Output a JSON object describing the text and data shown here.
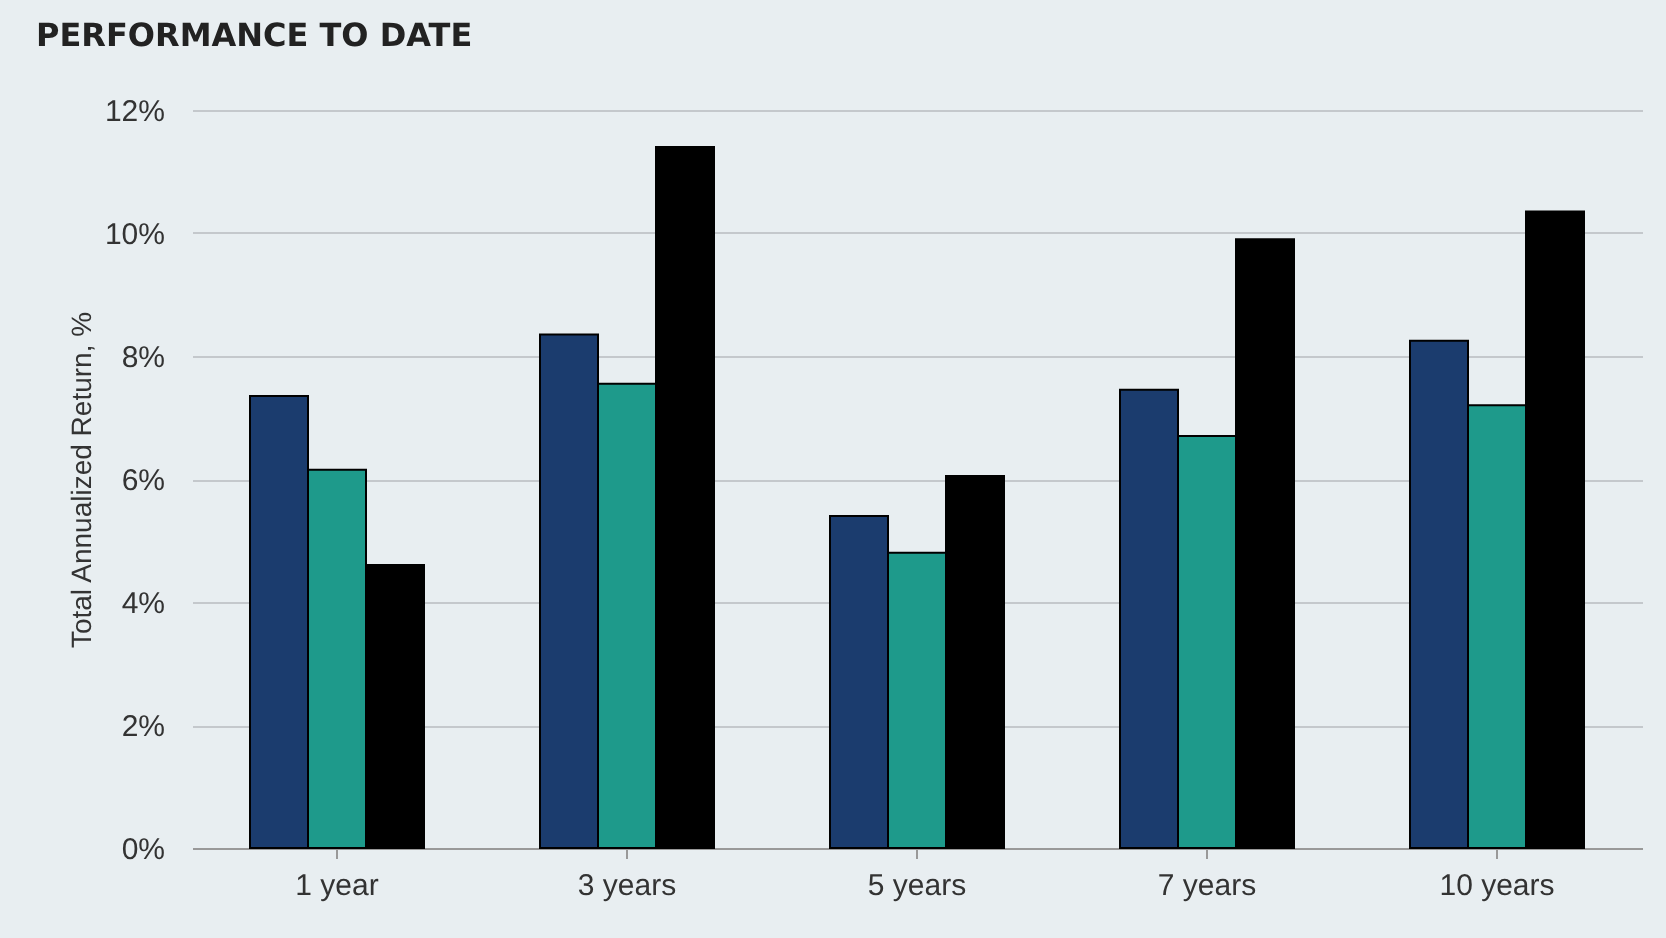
{
  "chart_data": {
    "type": "bar",
    "title": "PERFORMANCE TO DATE",
    "ylabel": "Total Annualized Return, %",
    "categories": [
      "1 year",
      "3 years",
      "5 years",
      "7 years",
      "10 years"
    ],
    "series": [
      {
        "color": "#1b3c6e",
        "values": [
          7.35,
          8.35,
          5.4,
          7.45,
          8.25
        ]
      },
      {
        "color": "#1e9a8b",
        "values": [
          6.15,
          7.55,
          4.8,
          6.7,
          7.2
        ]
      },
      {
        "color": "#000000",
        "values": [
          4.6,
          11.4,
          6.05,
          9.9,
          10.35
        ]
      }
    ],
    "ylim": [
      0,
      12
    ],
    "yticks": [
      {
        "value": 0,
        "label": "0%"
      },
      {
        "value": 2,
        "label": "2%"
      },
      {
        "value": 4,
        "label": "4%"
      },
      {
        "value": 6,
        "label": "6%"
      },
      {
        "value": 8,
        "label": "8%"
      },
      {
        "value": 10,
        "label": "10%"
      },
      {
        "value": 12,
        "label": "12%"
      }
    ],
    "grid": "y",
    "legend": false
  }
}
